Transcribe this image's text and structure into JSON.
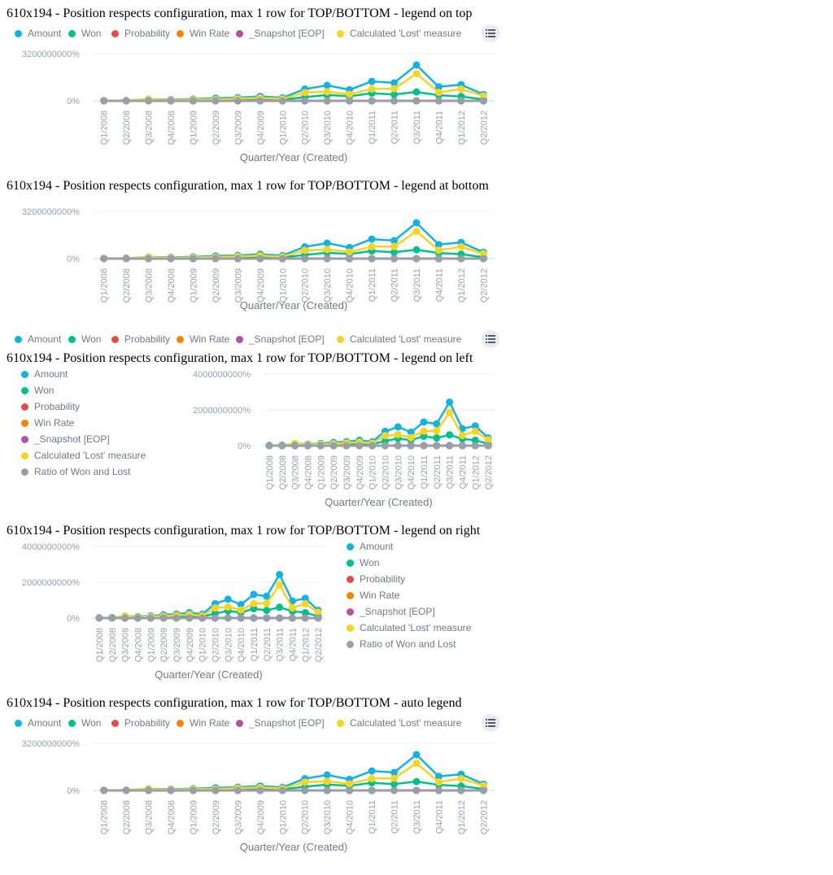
{
  "headings": [
    "610x194 - Position respects configuration, max 1 row for TOP/BOTTOM - legend on top",
    "610x194 - Position respects configuration, max 1 row for TOP/BOTTOM - legend at bottom",
    "610x194 - Position respects configuration, max 1 row for TOP/BOTTOM - legend on left",
    "610x194 - Position respects configuration, max 1 row for TOP/BOTTOM - legend on right",
    "610x194 - Position respects configuration, max 1 row for TOP/BOTTOM - auto legend"
  ],
  "legend_menu_icon": "list-icon",
  "chart_data": [
    {
      "type": "line",
      "title": "610x194 - Position respects configuration, max 1 row for TOP/BOTTOM - legend on top",
      "legend_position": "top",
      "xlabel": "Quarter/Year (Created)",
      "ylabel": "",
      "ylim": [
        0,
        3200000000
      ],
      "y_ticks": [
        "0%",
        "3200000000%"
      ],
      "grid": true
    },
    {
      "type": "line",
      "title": "610x194 - Position respects configuration, max 1 row for TOP/BOTTOM - legend at bottom",
      "legend_position": "bottom",
      "xlabel": "Quarter/Year (Created)",
      "ylabel": "",
      "ylim": [
        0,
        3200000000
      ],
      "y_ticks": [
        "0%",
        "3200000000%"
      ],
      "grid": true
    },
    {
      "type": "line",
      "title": "610x194 - Position respects configuration, max 1 row for TOP/BOTTOM - legend on left",
      "legend_position": "left",
      "xlabel": "Quarter/Year (Created)",
      "ylabel": "",
      "ylim": [
        0,
        4000000000
      ],
      "y_ticks": [
        "0%",
        "2000000000%",
        "4000000000%"
      ],
      "grid": true
    },
    {
      "type": "line",
      "title": "610x194 - Position respects configuration, max 1 row for TOP/BOTTOM - legend on right",
      "legend_position": "right",
      "xlabel": "Quarter/Year (Created)",
      "ylabel": "",
      "ylim": [
        0,
        4000000000
      ],
      "y_ticks": [
        "0%",
        "2000000000%",
        "4000000000%"
      ],
      "grid": true
    },
    {
      "type": "line",
      "title": "610x194 - Position respects configuration, max 1 row for TOP/BOTTOM - auto legend",
      "legend_position": "top",
      "xlabel": "Quarter/Year (Created)",
      "ylabel": "",
      "ylim": [
        0,
        3200000000
      ],
      "y_ticks": [
        "0%",
        "3200000000%"
      ],
      "grid": true
    }
  ],
  "shared_data": {
    "categories": [
      "Q1/2008",
      "Q2/2008",
      "Q3/2008",
      "Q4/2008",
      "Q1/2009",
      "Q2/2009",
      "Q3/2009",
      "Q4/2009",
      "Q1/2010",
      "Q2/2010",
      "Q3/2010",
      "Q4/2010",
      "Q1/2011",
      "Q2/2011",
      "Q3/2011",
      "Q4/2011",
      "Q1/2012",
      "Q2/2012"
    ],
    "series": [
      {
        "name": "Amount",
        "color": "#14B2E2",
        "values": [
          10000000,
          20000000,
          110000000,
          80000000,
          120000000,
          180000000,
          220000000,
          300000000,
          210000000,
          800000000,
          1050000000,
          750000000,
          1320000000,
          1220000000,
          2430000000,
          950000000,
          1100000000,
          430000000
        ]
      },
      {
        "name": "Won",
        "color": "#00C18D",
        "values": [
          10000000,
          20000000,
          40000000,
          30000000,
          50000000,
          60000000,
          70000000,
          90000000,
          80000000,
          250000000,
          400000000,
          310000000,
          520000000,
          430000000,
          600000000,
          380000000,
          300000000,
          100000000
        ]
      },
      {
        "name": "Probability",
        "color": "#E54D42",
        "values": [
          0,
          0,
          0,
          0,
          0,
          0,
          0,
          0,
          0,
          0,
          0,
          0,
          0,
          0,
          0,
          0,
          0,
          0
        ]
      },
      {
        "name": "Win Rate",
        "color": "#F18600",
        "values": [
          0,
          0,
          0,
          0,
          0,
          0,
          0,
          0,
          0,
          0,
          0,
          0,
          0,
          0,
          0,
          0,
          0,
          0
        ]
      },
      {
        "name": "_Snapshot [EOP]",
        "color": "#AB55A3",
        "values": [
          0,
          0,
          0,
          0,
          0,
          0,
          0,
          0,
          0,
          0,
          0,
          0,
          0,
          0,
          0,
          0,
          0,
          0
        ]
      },
      {
        "name": "Calculated 'Lost' measure",
        "color": "#F4D521",
        "values": [
          0,
          10000000,
          100000000,
          50000000,
          80000000,
          100000000,
          150000000,
          200000000,
          130000000,
          560000000,
          620000000,
          450000000,
          810000000,
          820000000,
          1850000000,
          570000000,
          800000000,
          330000000
        ]
      },
      {
        "name": "Ratio of Won and Lost",
        "color": "#94A1AD",
        "values": [
          0,
          0,
          0,
          0,
          0,
          0,
          0,
          0,
          0,
          0,
          0,
          0,
          0,
          0,
          0,
          0,
          0,
          0
        ]
      }
    ]
  }
}
